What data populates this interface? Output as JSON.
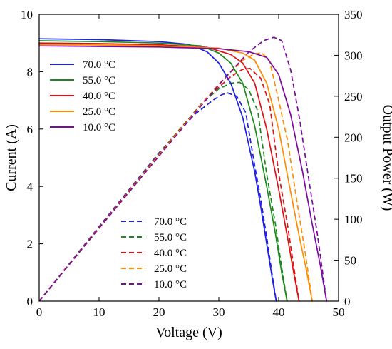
{
  "chart_data": {
    "type": "line",
    "xlabel": "Voltage (V)",
    "ylabel_left": "Current (A)",
    "ylabel_right": "Output Power (W)",
    "xlim": [
      0,
      50
    ],
    "ylim_left": [
      0,
      10
    ],
    "ylim_right": [
      0,
      350
    ],
    "x_ticks": [
      "0",
      "10",
      "20",
      "30",
      "40",
      "50"
    ],
    "y_ticks_left": [
      "0",
      "2",
      "4",
      "6",
      "8",
      "10"
    ],
    "y_ticks_right": [
      "0",
      "50",
      "100",
      "150",
      "200",
      "250",
      "300",
      "350"
    ],
    "current_series": [
      {
        "name": "70.0 °C",
        "color": "#1f1fe6",
        "axis": "left",
        "style": "solid",
        "points": [
          [
            0,
            9.15
          ],
          [
            10,
            9.12
          ],
          [
            20,
            9.05
          ],
          [
            25,
            8.95
          ],
          [
            28,
            8.7
          ],
          [
            30,
            8.3
          ],
          [
            32,
            7.6
          ],
          [
            34,
            6.4
          ],
          [
            36,
            4.5
          ],
          [
            37,
            3.3
          ],
          [
            38,
            2.0
          ],
          [
            39,
            0.7
          ],
          [
            39.6,
            0
          ]
        ]
      },
      {
        "name": "55.0 °C",
        "color": "#1b8a1b",
        "axis": "left",
        "style": "solid",
        "points": [
          [
            0,
            9.08
          ],
          [
            10,
            9.05
          ],
          [
            20,
            9.0
          ],
          [
            27,
            8.9
          ],
          [
            30,
            8.65
          ],
          [
            32,
            8.3
          ],
          [
            34,
            7.6
          ],
          [
            36,
            6.1
          ],
          [
            38,
            4.0
          ],
          [
            39.5,
            2.3
          ],
          [
            40.5,
            1.0
          ],
          [
            41.4,
            0
          ]
        ]
      },
      {
        "name": "40.0 °C",
        "color": "#e01010",
        "axis": "left",
        "style": "solid",
        "points": [
          [
            0,
            9.0
          ],
          [
            10,
            8.98
          ],
          [
            20,
            8.94
          ],
          [
            28,
            8.85
          ],
          [
            32,
            8.6
          ],
          [
            34,
            8.3
          ],
          [
            36,
            7.6
          ],
          [
            38,
            6.0
          ],
          [
            40,
            3.9
          ],
          [
            41.5,
            2.2
          ],
          [
            42.5,
            1.0
          ],
          [
            43.4,
            0
          ]
        ]
      },
      {
        "name": "25.0 °C",
        "color": "#ff8c00",
        "axis": "left",
        "style": "solid",
        "points": [
          [
            0,
            8.95
          ],
          [
            10,
            8.93
          ],
          [
            20,
            8.9
          ],
          [
            30,
            8.82
          ],
          [
            34,
            8.65
          ],
          [
            36,
            8.4
          ],
          [
            38,
            7.6
          ],
          [
            40,
            6.0
          ],
          [
            42,
            3.8
          ],
          [
            43.5,
            2.2
          ],
          [
            44.7,
            1.0
          ],
          [
            45.6,
            0
          ]
        ]
      },
      {
        "name": "10.0 °C",
        "color": "#7b0a9e",
        "axis": "left",
        "style": "solid",
        "points": [
          [
            0,
            8.9
          ],
          [
            10,
            8.88
          ],
          [
            20,
            8.86
          ],
          [
            30,
            8.8
          ],
          [
            35,
            8.7
          ],
          [
            38,
            8.5
          ],
          [
            40,
            7.9
          ],
          [
            42,
            6.5
          ],
          [
            44,
            4.5
          ],
          [
            45.5,
            2.8
          ],
          [
            47,
            1.2
          ],
          [
            48,
            0
          ]
        ]
      }
    ],
    "power_series": [
      {
        "name": "70.0 °C",
        "color": "#1f1fe6",
        "axis": "right",
        "style": "dashed",
        "points": [
          [
            0,
            0
          ],
          [
            10,
            91
          ],
          [
            20,
            181
          ],
          [
            26,
            228
          ],
          [
            29,
            245
          ],
          [
            30.5,
            252
          ],
          [
            31.5,
            254
          ],
          [
            33,
            250
          ],
          [
            34.5,
            230
          ],
          [
            36,
            165
          ],
          [
            37,
            125
          ],
          [
            38,
            78
          ],
          [
            39,
            28
          ],
          [
            39.6,
            0
          ]
        ]
      },
      {
        "name": "55.0 °C",
        "color": "#1b8a1b",
        "axis": "right",
        "style": "dashed",
        "points": [
          [
            0,
            0
          ],
          [
            10,
            90
          ],
          [
            20,
            180
          ],
          [
            27,
            240
          ],
          [
            30,
            259
          ],
          [
            32,
            266
          ],
          [
            33.5,
            267
          ],
          [
            35,
            258
          ],
          [
            36.5,
            232
          ],
          [
            38,
            155
          ],
          [
            39.5,
            92
          ],
          [
            40.5,
            41
          ],
          [
            41.4,
            0
          ]
        ]
      },
      {
        "name": "40.0 °C",
        "color": "#e01010",
        "axis": "right",
        "style": "dashed",
        "points": [
          [
            0,
            0
          ],
          [
            10,
            90
          ],
          [
            20,
            179
          ],
          [
            28,
            248
          ],
          [
            32,
            274
          ],
          [
            34,
            283
          ],
          [
            35.2,
            284
          ],
          [
            37,
            272
          ],
          [
            38.5,
            240
          ],
          [
            40,
            156
          ],
          [
            41.5,
            92
          ],
          [
            42.5,
            43
          ],
          [
            43.4,
            0
          ]
        ]
      },
      {
        "name": "25.0 °C",
        "color": "#ff8c00",
        "axis": "right",
        "style": "dashed",
        "points": [
          [
            0,
            0
          ],
          [
            10,
            89
          ],
          [
            20,
            178
          ],
          [
            30,
            265
          ],
          [
            34,
            294
          ],
          [
            36,
            302
          ],
          [
            37.2,
            303
          ],
          [
            38.5,
            293
          ],
          [
            40,
            245
          ],
          [
            41.5,
            195
          ],
          [
            43,
            124
          ],
          [
            44.5,
            56
          ],
          [
            45.6,
            0
          ]
        ]
      },
      {
        "name": "10.0 °C",
        "color": "#7b0a9e",
        "axis": "right",
        "style": "dashed",
        "points": [
          [
            0,
            0
          ],
          [
            10,
            89
          ],
          [
            20,
            177
          ],
          [
            30,
            264
          ],
          [
            35,
            304
          ],
          [
            37.5,
            318
          ],
          [
            39.2,
            322
          ],
          [
            40.5,
            318
          ],
          [
            42,
            282
          ],
          [
            43.5,
            222
          ],
          [
            45,
            150
          ],
          [
            46.5,
            80
          ],
          [
            48,
            0
          ]
        ]
      }
    ],
    "legends": [
      {
        "position": "upper-left",
        "style": "solid",
        "entries": [
          "70.0 °C",
          "55.0 °C",
          "40.0 °C",
          "25.0 °C",
          "10.0 °C"
        ]
      },
      {
        "position": "lower-center",
        "style": "dashed",
        "entries": [
          "70.0 °C",
          "55.0 °C",
          "40.0 °C",
          "25.0 °C",
          "10.0 °C"
        ]
      }
    ],
    "grid": false
  }
}
